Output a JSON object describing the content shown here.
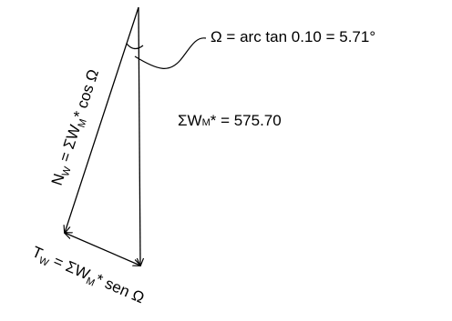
{
  "angle_label": "Ω = arc tan 0.10 = 5.71°",
  "sum_label": {
    "prefix": "ΣW",
    "sub": "M",
    "suffix": "* = 575.70"
  },
  "normal_label": {
    "n": "N",
    "n_sub": "W",
    "eq": " = ΣW",
    "m_sub": "M",
    "rest": "* cos Ω"
  },
  "tangent_label": {
    "t": "T",
    "t_sub": "W",
    "eq": " = ΣW",
    "m_sub": "M",
    "rest": "* sen Ω"
  },
  "colors": {
    "stroke": "#000000",
    "text": "#000000"
  }
}
